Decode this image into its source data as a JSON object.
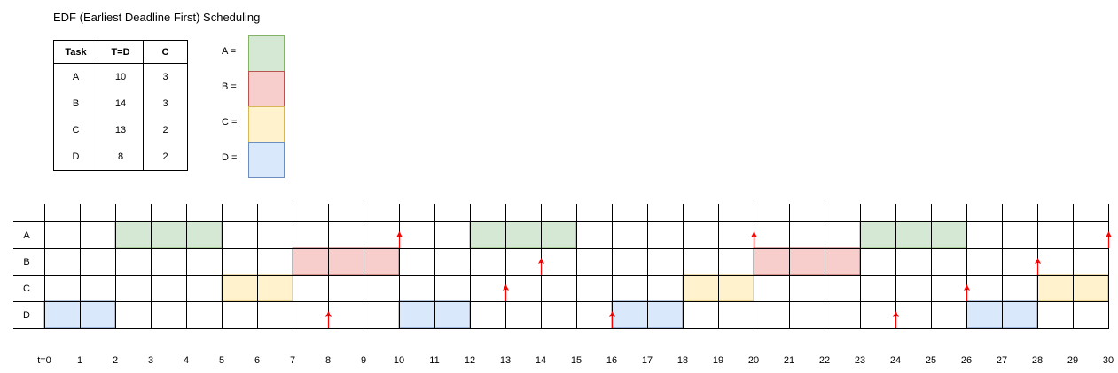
{
  "title": "EDF (Earliest Deadline First) Scheduling",
  "task_table": {
    "headers": [
      "Task",
      "T=D",
      "C"
    ],
    "rows": [
      [
        "A",
        "10",
        "3"
      ],
      [
        "B",
        "14",
        "3"
      ],
      [
        "C",
        "13",
        "2"
      ],
      [
        "D",
        "8",
        "2"
      ]
    ]
  },
  "legend": [
    {
      "label": "A =",
      "task": "A"
    },
    {
      "label": "B =",
      "task": "B"
    },
    {
      "label": "C =",
      "task": "C"
    },
    {
      "label": "D =",
      "task": "D"
    }
  ],
  "colors": {
    "A": {
      "fill": "#d5e8d4",
      "stroke": "#82b366"
    },
    "B": {
      "fill": "#f8cecc",
      "stroke": "#b85450"
    },
    "C": {
      "fill": "#fff2cc",
      "stroke": "#d6b656"
    },
    "D": {
      "fill": "#dae8fc",
      "stroke": "#6c8ebf"
    },
    "arrow": "#ff0000"
  },
  "timeline": {
    "rows": [
      "A",
      "B",
      "C",
      "D"
    ],
    "time_labels": [
      "t=0",
      "1",
      "2",
      "3",
      "4",
      "5",
      "6",
      "7",
      "8",
      "9",
      "10",
      "11",
      "12",
      "13",
      "14",
      "15",
      "16",
      "17",
      "18",
      "19",
      "20",
      "21",
      "22",
      "23",
      "24",
      "25",
      "26",
      "27",
      "28",
      "29",
      "30"
    ],
    "executions": [
      {
        "task": "D",
        "start": 0,
        "end": 2
      },
      {
        "task": "A",
        "start": 2,
        "end": 5
      },
      {
        "task": "C",
        "start": 5,
        "end": 7
      },
      {
        "task": "B",
        "start": 7,
        "end": 10
      },
      {
        "task": "D",
        "start": 10,
        "end": 12
      },
      {
        "task": "A",
        "start": 12,
        "end": 15
      },
      {
        "task": "D",
        "start": 16,
        "end": 18
      },
      {
        "task": "C",
        "start": 18,
        "end": 20
      },
      {
        "task": "B",
        "start": 20,
        "end": 23
      },
      {
        "task": "A",
        "start": 23,
        "end": 26
      },
      {
        "task": "D",
        "start": 26,
        "end": 28
      },
      {
        "task": "C",
        "start": 28,
        "end": 30
      }
    ],
    "deadline_arrows": [
      {
        "task": "A",
        "time": 10
      },
      {
        "task": "A",
        "time": 20
      },
      {
        "task": "A",
        "time": 30
      },
      {
        "task": "B",
        "time": 14
      },
      {
        "task": "B",
        "time": 28
      },
      {
        "task": "C",
        "time": 13
      },
      {
        "task": "C",
        "time": 26
      },
      {
        "task": "D",
        "time": 8
      },
      {
        "task": "D",
        "time": 16
      },
      {
        "task": "D",
        "time": 24
      }
    ]
  }
}
